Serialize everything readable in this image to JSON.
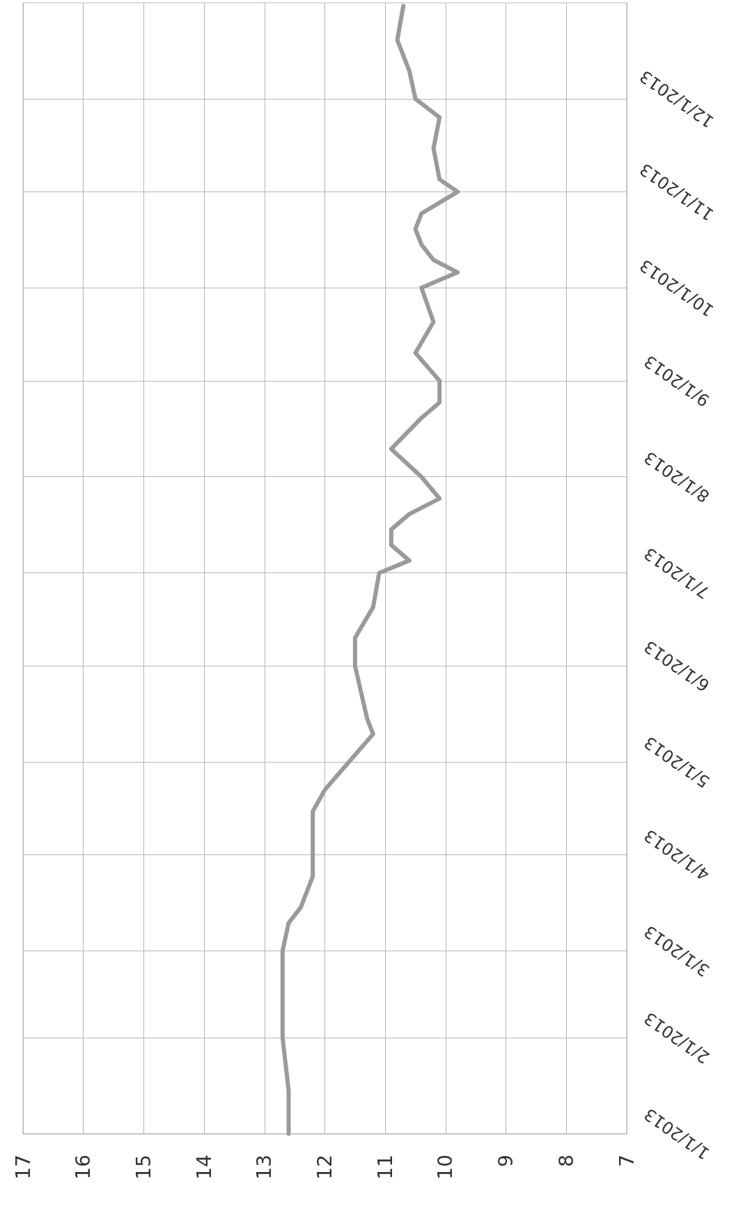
{
  "chart_data": {
    "type": "line",
    "orientation": "horizontal",
    "x": [
      "2013-01-01",
      "2013-01-15",
      "2013-02-01",
      "2013-02-15",
      "2013-03-01",
      "2013-03-10",
      "2013-03-15",
      "2013-03-25",
      "2013-04-01",
      "2013-04-15",
      "2013-04-22",
      "2013-05-01",
      "2013-05-10",
      "2013-05-15",
      "2013-06-01",
      "2013-06-10",
      "2013-06-20",
      "2013-07-01",
      "2013-07-05",
      "2013-07-10",
      "2013-07-15",
      "2013-07-20",
      "2013-07-25",
      "2013-08-01",
      "2013-08-10",
      "2013-08-20",
      "2013-08-25",
      "2013-09-01",
      "2013-09-10",
      "2013-09-20",
      "2013-10-01",
      "2013-10-06",
      "2013-10-10",
      "2013-10-15",
      "2013-10-20",
      "2013-10-25",
      "2013-11-01",
      "2013-11-05",
      "2013-11-15",
      "2013-11-25",
      "2013-12-01",
      "2013-12-10",
      "2013-12-20",
      "2013-12-31"
    ],
    "series": [
      {
        "color": "#9a9a9a",
        "values": [
          12.6,
          12.6,
          12.7,
          12.7,
          12.7,
          12.6,
          12.4,
          12.2,
          12.2,
          12.2,
          12.0,
          11.6,
          11.2,
          11.3,
          11.5,
          11.5,
          11.2,
          11.1,
          10.6,
          10.9,
          10.9,
          10.6,
          10.1,
          10.4,
          10.9,
          10.4,
          10.1,
          10.1,
          10.5,
          10.2,
          10.4,
          9.8,
          10.2,
          10.4,
          10.5,
          10.4,
          9.8,
          10.1,
          10.2,
          10.1,
          10.5,
          10.6,
          10.8,
          10.7
        ]
      }
    ],
    "ylim": [
      "2013-01-01",
      "2014-01-01"
    ],
    "yticks": [
      {
        "value": "2013-01-01",
        "label": "1/1/2013"
      },
      {
        "value": "2013-02-01",
        "label": "2/1/2013"
      },
      {
        "value": "2013-03-01",
        "label": "3/1/2013"
      },
      {
        "value": "2013-04-01",
        "label": "4/1/2013"
      },
      {
        "value": "2013-05-01",
        "label": "5/1/2013"
      },
      {
        "value": "2013-06-01",
        "label": "6/1/2013"
      },
      {
        "value": "2013-07-01",
        "label": "7/1/2013"
      },
      {
        "value": "2013-08-01",
        "label": "8/1/2013"
      },
      {
        "value": "2013-09-01",
        "label": "9/1/2013"
      },
      {
        "value": "2013-10-01",
        "label": "10/1/2013"
      },
      {
        "value": "2013-11-01",
        "label": "11/1/2013"
      },
      {
        "value": "2013-12-01",
        "label": "12/1/2013"
      }
    ],
    "xlim": [
      17,
      7
    ],
    "xticks": [
      17,
      16,
      15,
      14,
      13,
      12,
      11,
      10,
      9,
      8,
      7
    ],
    "grid": true,
    "marker": "none",
    "line_style": "solid"
  }
}
